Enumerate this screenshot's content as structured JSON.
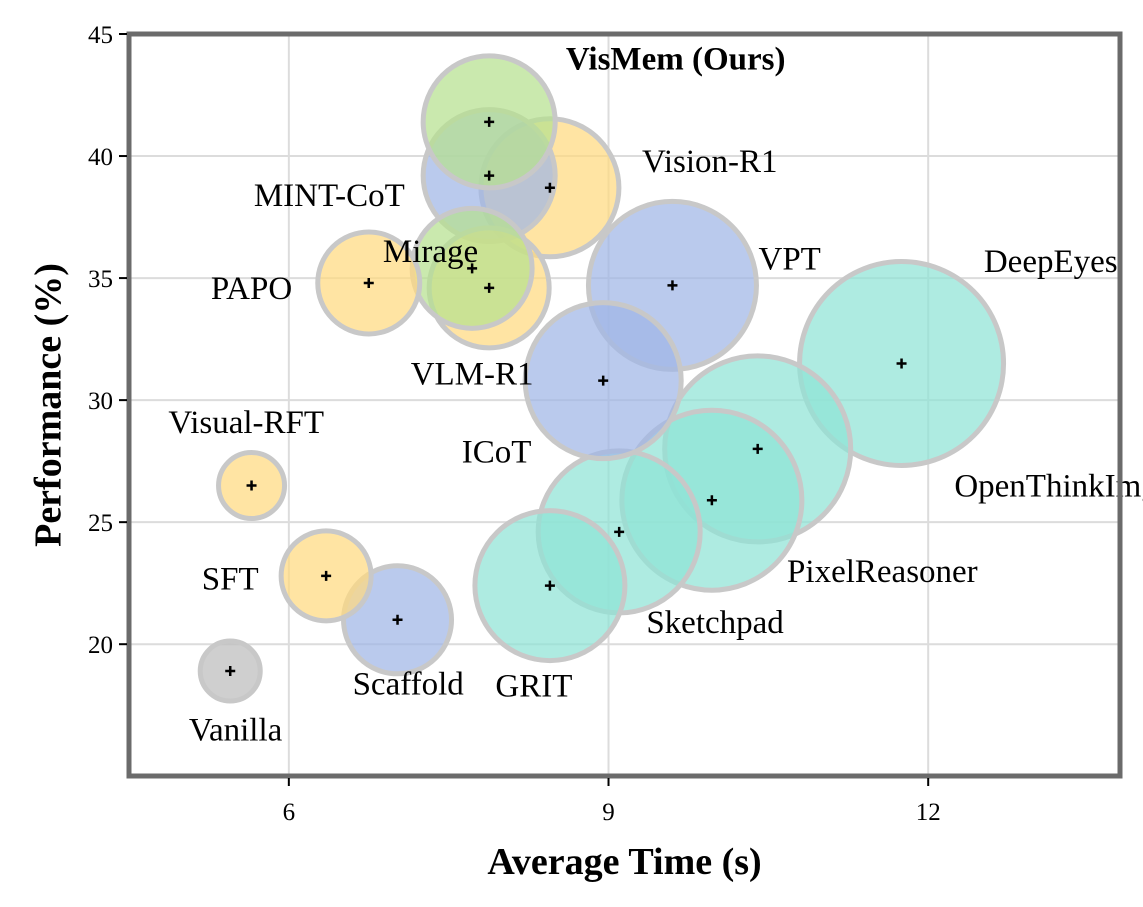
{
  "chart_data": {
    "type": "scatter",
    "variant": "bubble",
    "title": "",
    "xlabel": "Average Time (s)",
    "ylabel": "Performance (%)",
    "xlim": [
      4.5,
      13.8
    ],
    "ylim": [
      14.6,
      45
    ],
    "xticks": [
      6,
      9,
      12
    ],
    "yticks": [
      20,
      25,
      30,
      35,
      40,
      45
    ],
    "grid": true,
    "colors": {
      "yellow": "#ffd980",
      "blue": "#9fb6e6",
      "teal": "#8fe3d6",
      "green": "#b6e08f",
      "gray": "#bdbdbd",
      "outline": "#c8c8c8",
      "frame": "#6b6b6b",
      "grid": "#dcdcdc"
    },
    "points": [
      {
        "name": "Vanilla",
        "x": 5.45,
        "y": 18.9,
        "size": 1.0,
        "color": "gray",
        "label_dx": 0.05,
        "label_dy": -2.4,
        "bold": false
      },
      {
        "name": "SFT",
        "x": 6.35,
        "y": 22.8,
        "size": 1.5,
        "color": "yellow",
        "label_dx": -0.9,
        "label_dy": -0.1,
        "bold": false
      },
      {
        "name": "Scaffold",
        "x": 7.02,
        "y": 21.0,
        "size": 1.8,
        "color": "blue",
        "label_dx": 0.1,
        "label_dy": -2.6,
        "bold": false
      },
      {
        "name": "Visual-RFT",
        "x": 5.65,
        "y": 26.5,
        "size": 1.1,
        "color": "yellow",
        "label_dx": -0.05,
        "label_dy": 2.6,
        "bold": false
      },
      {
        "name": "PAPO",
        "x": 6.75,
        "y": 34.8,
        "size": 1.7,
        "color": "yellow",
        "label_dx": -1.1,
        "label_dy": -0.2,
        "bold": false
      },
      {
        "name": "Mirage",
        "x": 7.88,
        "y": 34.6,
        "size": 2.0,
        "color": "yellow",
        "label_dx": -0.55,
        "label_dy": 1.5,
        "bold": false
      },
      {
        "name": "VLM-R1",
        "x": 7.72,
        "y": 35.4,
        "size": 2.0,
        "color": "green",
        "label_dx": 0.0,
        "label_dy": -4.3,
        "bold": false
      },
      {
        "name": "MINT-CoT",
        "x": 7.88,
        "y": 39.2,
        "size": 2.2,
        "color": "blue",
        "label_dx": -1.5,
        "label_dy": -0.8,
        "bold": false
      },
      {
        "name": "Vision-R1",
        "x": 8.45,
        "y": 38.7,
        "size": 2.3,
        "color": "yellow",
        "label_dx": 1.5,
        "label_dy": 1.1,
        "bold": false
      },
      {
        "name": "VisMem (Ours)",
        "x": 7.88,
        "y": 41.4,
        "size": 2.2,
        "color": "green",
        "label_dx": 1.75,
        "label_dy": 2.6,
        "bold": true
      },
      {
        "name": "VPT",
        "x": 9.6,
        "y": 34.7,
        "size": 2.8,
        "color": "blue",
        "label_dx": 1.1,
        "label_dy": 1.1,
        "bold": false
      },
      {
        "name": "ICoT",
        "x": 8.95,
        "y": 30.8,
        "size": 2.6,
        "color": "blue",
        "label_dx": -1.0,
        "label_dy": -2.9,
        "bold": false
      },
      {
        "name": "DeepEyes",
        "x": 11.75,
        "y": 31.5,
        "size": 3.4,
        "color": "teal",
        "label_dx": 1.4,
        "label_dy": 4.2,
        "bold": false
      },
      {
        "name": "OpenThinkImg",
        "x": 10.4,
        "y": 28.0,
        "size": 3.1,
        "color": "teal",
        "label_dx": 2.8,
        "label_dy": -1.5,
        "bold": false
      },
      {
        "name": "PixelReasoner",
        "x": 9.97,
        "y": 25.9,
        "size": 3.0,
        "color": "teal",
        "label_dx": 1.6,
        "label_dy": -2.9,
        "bold": false
      },
      {
        "name": "Sketchpad",
        "x": 9.1,
        "y": 24.6,
        "size": 2.7,
        "color": "teal",
        "label_dx": 0.9,
        "label_dy": -3.7,
        "bold": false
      },
      {
        "name": "GRIT",
        "x": 8.45,
        "y": 22.4,
        "size": 2.5,
        "color": "teal",
        "label_dx": -0.15,
        "label_dy": -4.1,
        "bold": false
      }
    ]
  }
}
